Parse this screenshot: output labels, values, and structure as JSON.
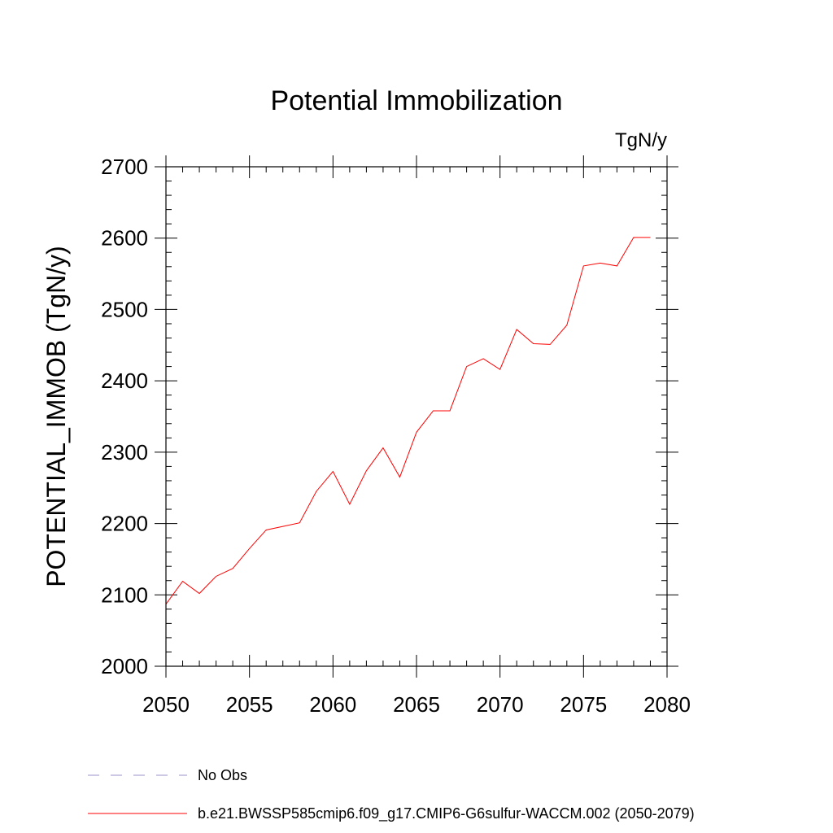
{
  "chart_data": {
    "type": "line",
    "title": "Potential Immobilization",
    "units": "TgN/y",
    "ylabel": "POTENTIAL_IMMOB  (TgN/y)",
    "xlabel": "",
    "xlim": [
      2050,
      2080
    ],
    "ylim": [
      2000,
      2700
    ],
    "x_ticks": [
      "2050",
      "2055",
      "2060",
      "2065",
      "2070",
      "2075",
      "2080"
    ],
    "y_ticks": [
      "2000",
      "2100",
      "2200",
      "2300",
      "2400",
      "2500",
      "2600",
      "2700"
    ],
    "grid": false,
    "x": [
      2050,
      2051,
      2052,
      2053,
      2054,
      2055,
      2056,
      2057,
      2058,
      2059,
      2060,
      2061,
      2062,
      2063,
      2064,
      2065,
      2066,
      2067,
      2068,
      2069,
      2070,
      2071,
      2072,
      2073,
      2074,
      2075,
      2076,
      2077,
      2078,
      2079
    ],
    "series": [
      {
        "name": "b.e21.BWSSP585cmip6.f09_g17.CMIP6-G6sulfur-WACCM.002 (2050-2079)",
        "color": "#ff0000",
        "style": "solid",
        "values": [
          2087,
          2119,
          2102,
          2126,
          2137,
          2165,
          2191,
          2196,
          2201,
          2245,
          2273,
          2227,
          2274,
          2306,
          2265,
          2328,
          2358,
          2358,
          2420,
          2431,
          2416,
          2472,
          2452,
          2451,
          2478,
          2561,
          2565,
          2561,
          2601,
          2601
        ]
      }
    ],
    "legend": [
      {
        "label": "No Obs",
        "color": "#9b93c8",
        "style": "dashed"
      },
      {
        "label": "b.e21.BWSSP585cmip6.f09_g17.CMIP6-G6sulfur-WACCM.002 (2050-2079)",
        "color": "#ff0000",
        "style": "solid"
      }
    ],
    "legend_placement": "bottom-left"
  }
}
